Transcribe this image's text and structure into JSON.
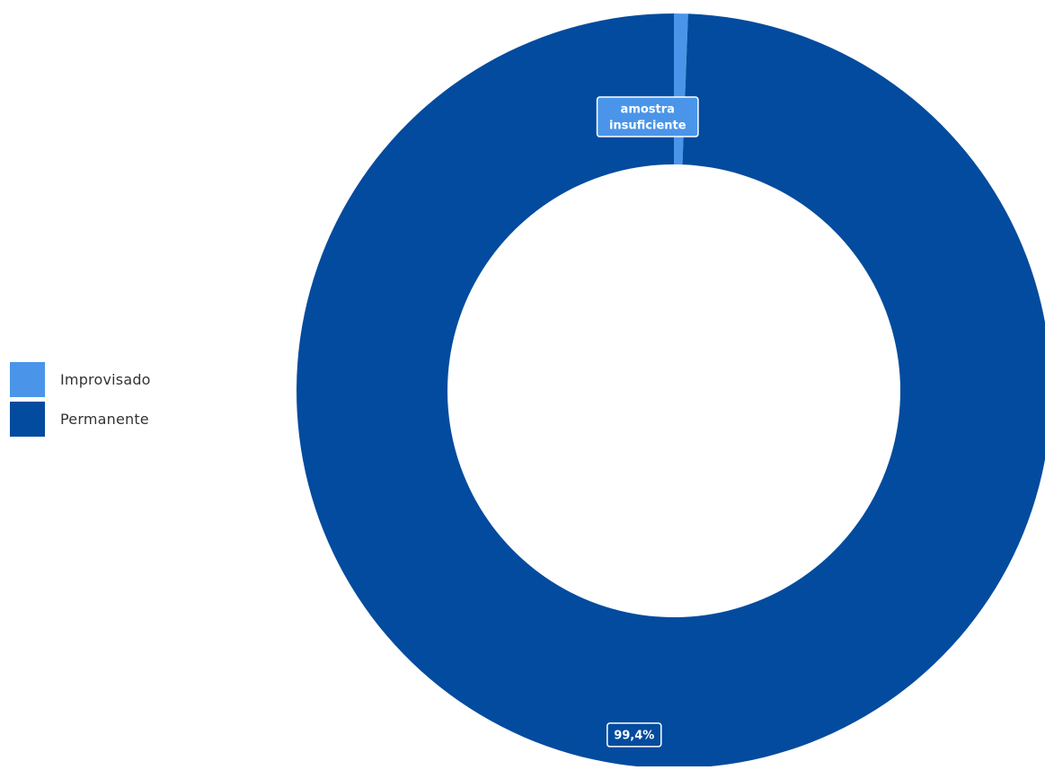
{
  "chart_data": {
    "type": "pie",
    "variant": "donut",
    "categories": [
      "Improvisado",
      "Permanente"
    ],
    "values": [
      0.6,
      99.4
    ],
    "unit": "%",
    "colors": [
      "#4a95e9",
      "#034b9e"
    ],
    "data_labels": [
      "amostra insuficiente",
      "99,4%"
    ],
    "data_label_lines": [
      [
        "amostra",
        "insuficiente"
      ],
      [
        "99,4%"
      ]
    ],
    "legend": {
      "position": "left",
      "entries": [
        "Improvisado",
        "Permanente"
      ]
    },
    "title": ""
  }
}
